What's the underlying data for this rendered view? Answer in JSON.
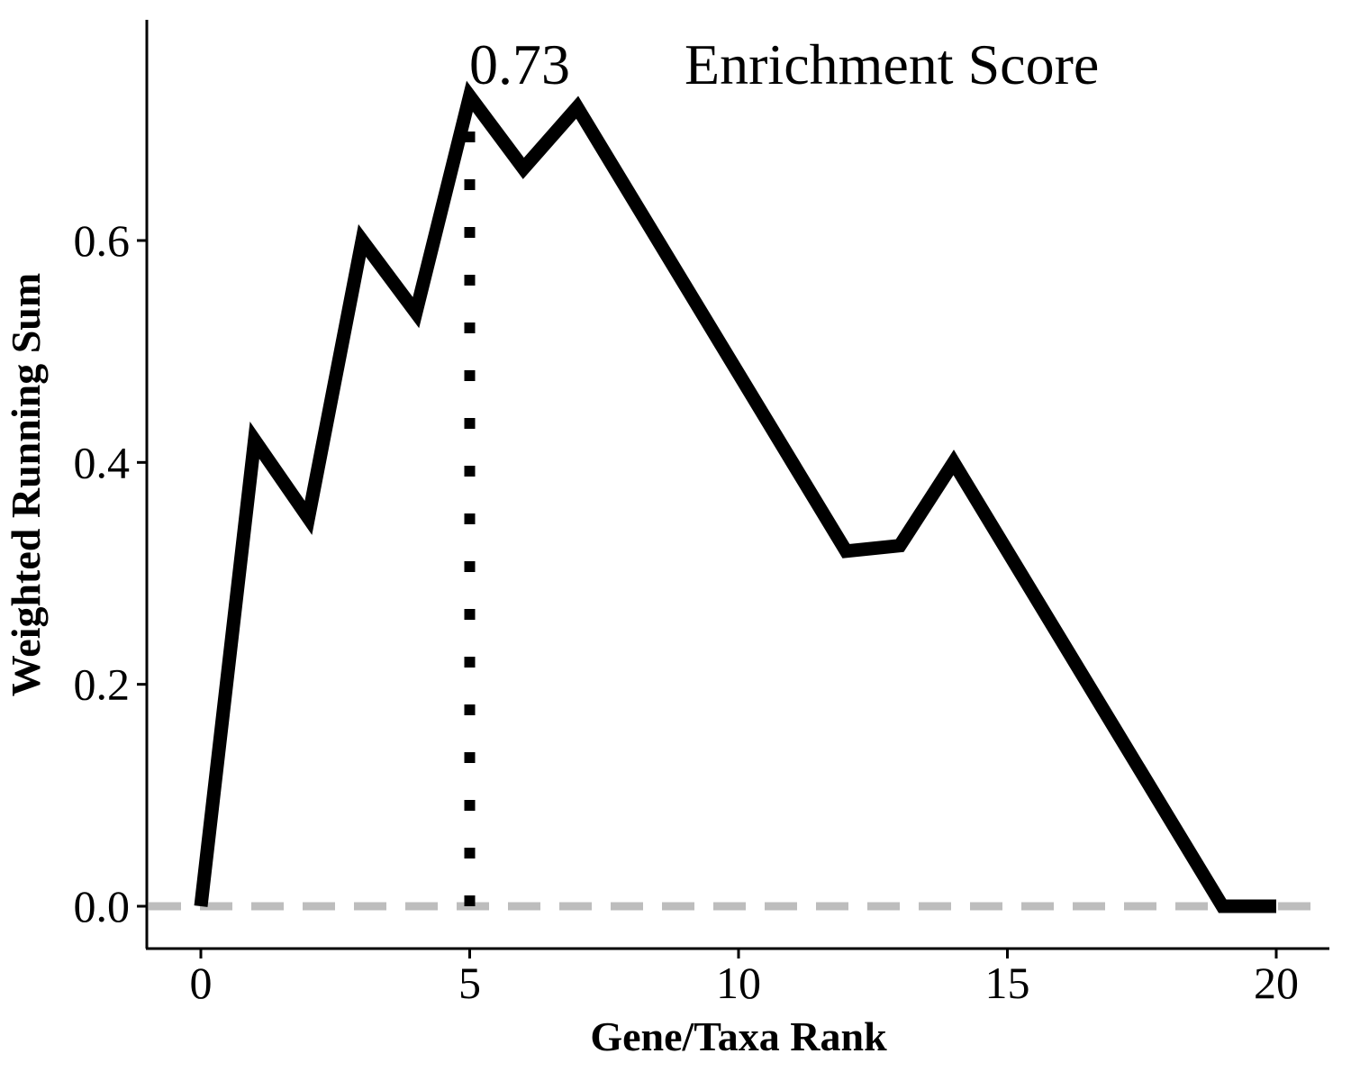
{
  "chart_data": {
    "type": "line",
    "title": "",
    "xlabel": "Gene/Taxa Rank",
    "ylabel": "Weighted Running Sum",
    "xlim": [
      -1,
      21
    ],
    "ylim": [
      -0.075,
      0.8
    ],
    "x_ticks": [
      0,
      5,
      10,
      15,
      20
    ],
    "x_tick_labels": [
      "0",
      "5",
      "10",
      "15",
      "20"
    ],
    "y_ticks": [
      0.0,
      0.2,
      0.4,
      0.6
    ],
    "y_tick_labels": [
      "0.0",
      "0.2",
      "0.4",
      "0.6"
    ],
    "grid": false,
    "series": [
      {
        "x": [
          0,
          1,
          2,
          3,
          4,
          5,
          6,
          7,
          8,
          9,
          10,
          11,
          12,
          13,
          14,
          15,
          16,
          17,
          18,
          19,
          20
        ],
        "values": [
          0.0,
          0.42,
          0.35,
          0.6,
          0.535,
          0.73,
          0.665,
          0.72,
          0.64,
          0.56,
          0.48,
          0.4,
          0.32,
          0.325,
          0.4,
          0.32,
          0.24,
          0.16,
          0.08,
          0.0,
          0.0
        ],
        "color": "#000000"
      }
    ],
    "reference_lines": [
      {
        "orientation": "horizontal",
        "value": 0.0,
        "style": "dashed",
        "color": "#bdbdbd"
      },
      {
        "orientation": "vertical",
        "value": 5,
        "from": 0.0,
        "to": 0.73,
        "style": "dotted",
        "color": "#000000"
      }
    ],
    "annotations": [
      {
        "text": "0.73",
        "x": 5,
        "y": 0.73
      },
      {
        "text": "Enrichment Score"
      }
    ]
  }
}
